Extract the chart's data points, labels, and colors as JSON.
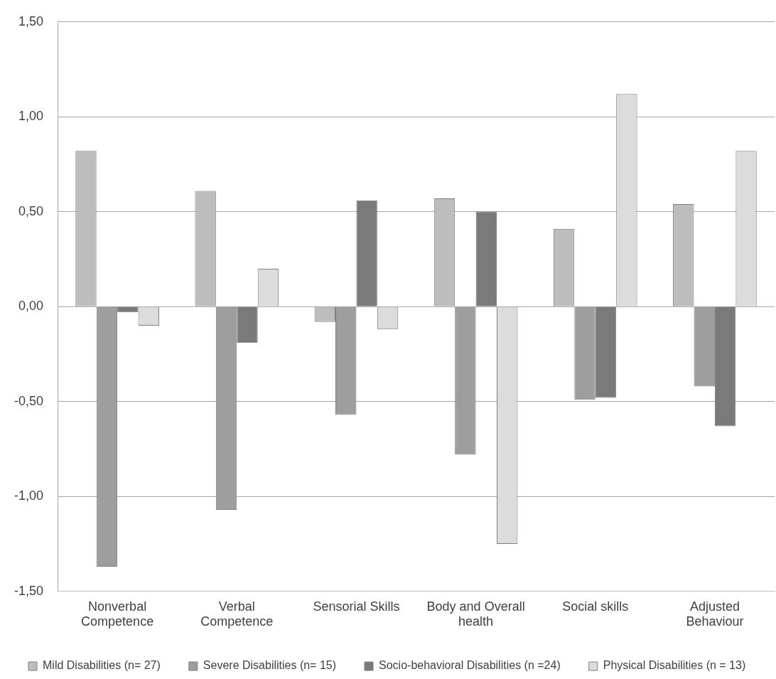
{
  "chart_data": {
    "type": "bar",
    "categories": [
      "Nonverbal Competence",
      "Verbal Competence",
      "Sensorial Skills",
      "Body and Overall health",
      "Social skills",
      "Adjusted Behaviour"
    ],
    "series": [
      {
        "name": "Mild Disabilities (n= 27)",
        "color": "#bdbdbd",
        "values": [
          0.82,
          0.61,
          -0.08,
          0.57,
          0.41,
          0.54
        ]
      },
      {
        "name": "Severe Disabilities (n= 15)",
        "color": "#9e9e9e",
        "values": [
          -1.37,
          -1.07,
          -0.57,
          -0.78,
          -0.49,
          -0.42
        ]
      },
      {
        "name": "Socio-behavioral Disabilities (n =24)",
        "color": "#7a7a7a",
        "values": [
          -0.03,
          -0.19,
          0.56,
          0.5,
          -0.48,
          -0.63
        ]
      },
      {
        "name": "Physical Disabilities (n = 13)",
        "color": "#dcdcdc",
        "values": [
          -0.1,
          0.2,
          -0.12,
          -1.25,
          1.12,
          0.82
        ]
      }
    ],
    "ylim": [
      -1.5,
      1.5
    ],
    "yticks": [
      {
        "value": -1.5,
        "label": "-1,50"
      },
      {
        "value": -1,
        "label": "-1,00"
      },
      {
        "value": -0.5,
        "label": "-0,50"
      },
      {
        "value": 0,
        "label": "0,00"
      },
      {
        "value": 0.5,
        "label": "0,50"
      },
      {
        "value": 1,
        "label": "1,00"
      },
      {
        "value": 1.5,
        "label": "1,50"
      }
    ],
    "grid": "y",
    "legend": "bottom"
  }
}
